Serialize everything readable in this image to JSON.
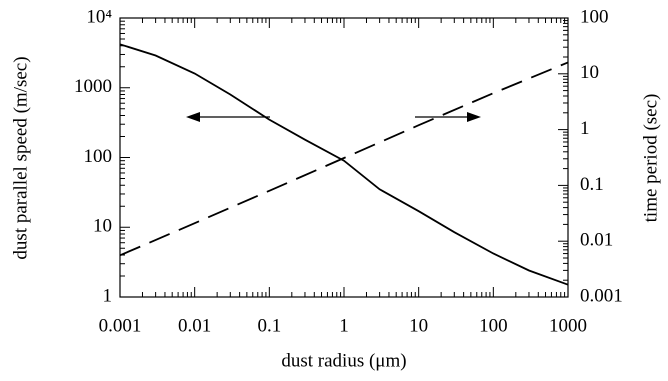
{
  "chart_data": {
    "type": "line",
    "x_label": "dust radius (μm)",
    "y_label": "dust parallel speed (m/sec)",
    "y2_label": "time period (sec)",
    "xscale": "log",
    "yscale": "log",
    "y2scale": "log",
    "xlim": [
      0.001,
      1000
    ],
    "ylim": [
      1,
      10000
    ],
    "y2lim": [
      0.001,
      100
    ],
    "xticks": [
      0.001,
      0.01,
      0.1,
      1,
      10,
      100,
      1000
    ],
    "yticks": [
      1,
      10,
      100,
      1000,
      {
        "value": 10000,
        "label": "10⁴"
      }
    ],
    "y2ticks": [
      0.001,
      0.01,
      0.1,
      1,
      10,
      100
    ],
    "series": [
      {
        "name": "dust parallel speed",
        "color": "#000000",
        "linestyle": "solid",
        "x": [
          0.001,
          0.003,
          0.01,
          0.03,
          0.1,
          0.3,
          1,
          3,
          10,
          30,
          100,
          300,
          1000
        ],
        "values": [
          4200,
          2900,
          1600,
          800,
          350,
          180,
          90,
          35,
          17,
          8.5,
          4.2,
          2.4,
          1.5
        ]
      },
      {
        "name": "time period",
        "color": "#000000",
        "linestyle": "dashed",
        "axis": "y2",
        "x": [
          0.001,
          0.01,
          0.1,
          1,
          10,
          100,
          1000
        ],
        "values": [
          0.0056,
          0.021,
          0.08,
          0.31,
          1.2,
          4.5,
          16
        ]
      }
    ]
  }
}
